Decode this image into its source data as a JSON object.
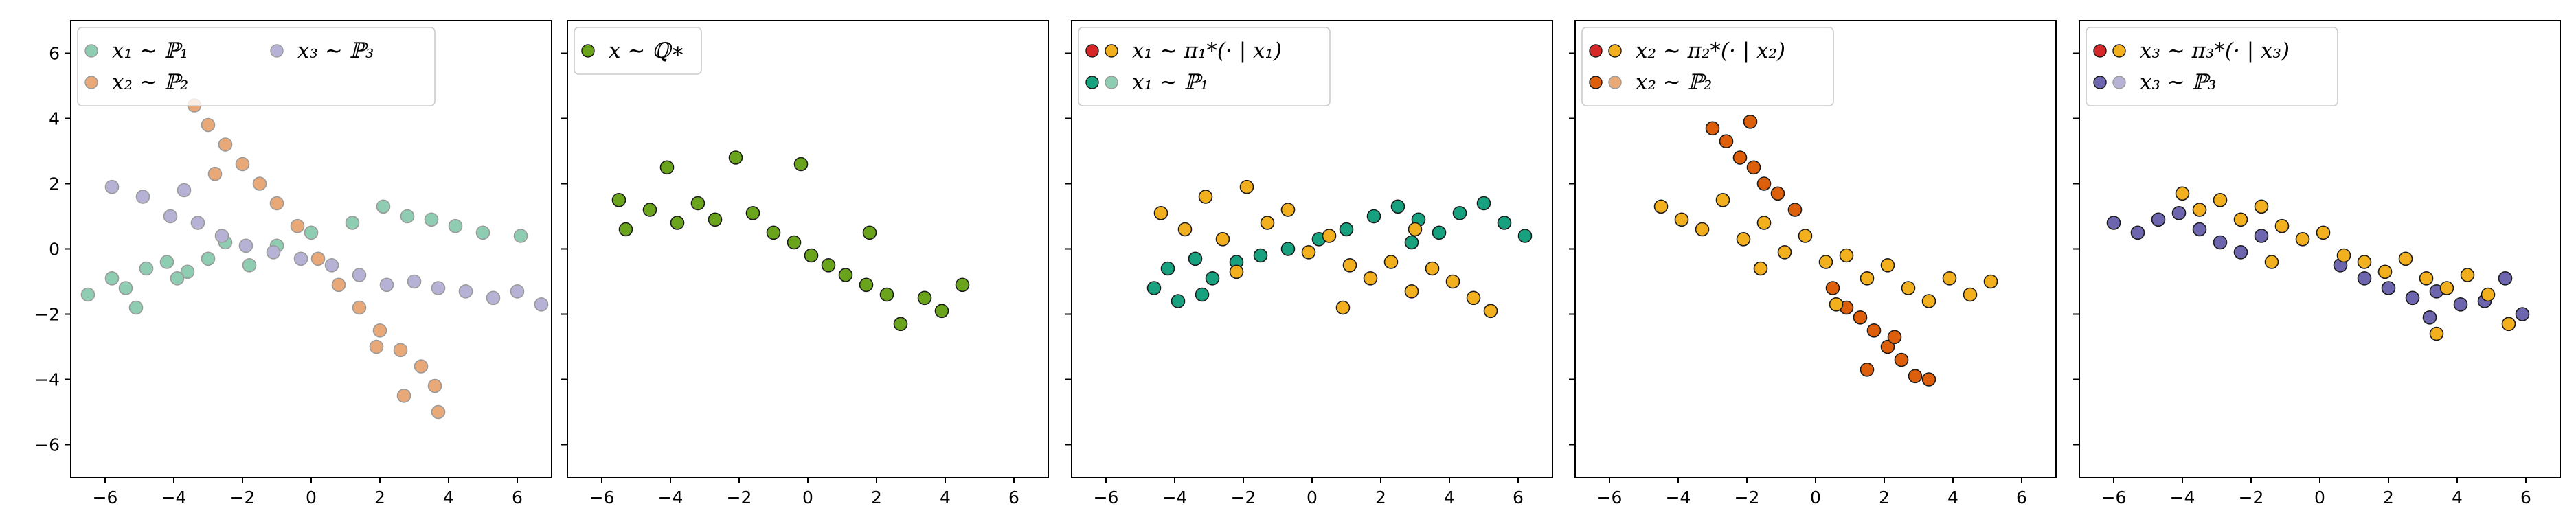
{
  "chart_data": [
    {
      "type": "scatter",
      "title": "",
      "xlabel": "",
      "ylabel": "",
      "xlim": [
        -7,
        7
      ],
      "ylim": [
        -7,
        7
      ],
      "xticks": [
        "−6",
        "−4",
        "−2",
        "0",
        "2",
        "4",
        "6"
      ],
      "yticks": [
        "6",
        "4",
        "2",
        "0",
        "−2",
        "−4",
        "−6"
      ],
      "show_yticklabels": true,
      "grid": false,
      "legend_position": "top-left",
      "legend_columns": 2,
      "legend": [
        {
          "label": "x₁ ∼ ℙ₁",
          "colors": [
            "#8fcdb3"
          ]
        },
        {
          "label": "x₂ ∼ ℙ₂",
          "colors": [
            "#e8a878"
          ]
        },
        {
          "label": "x₃ ∼ ℙ₃",
          "colors": [
            "#b6b2d6"
          ]
        }
      ],
      "series": [
        {
          "legend_label": "x₁ ∼ ℙ₁",
          "color": "#8fcdb3",
          "edge": "#9a9a9a",
          "points": [
            [
              -6.5,
              -1.4
            ],
            [
              -5.8,
              -0.9
            ],
            [
              -5.4,
              -1.2
            ],
            [
              -4.8,
              -0.6
            ],
            [
              -4.2,
              -0.4
            ],
            [
              -3.6,
              -0.7
            ],
            [
              -3.0,
              -0.3
            ],
            [
              -2.5,
              0.2
            ],
            [
              -1.8,
              -0.5
            ],
            [
              -1.0,
              0.1
            ],
            [
              0.0,
              0.5
            ],
            [
              1.2,
              0.8
            ],
            [
              2.1,
              1.3
            ],
            [
              2.8,
              1.0
            ],
            [
              3.5,
              0.9
            ],
            [
              4.2,
              0.7
            ],
            [
              5.0,
              0.5
            ],
            [
              6.1,
              0.4
            ],
            [
              -5.1,
              -1.8
            ],
            [
              -3.9,
              -0.9
            ]
          ]
        },
        {
          "legend_label": "x₂ ∼ ℙ₂",
          "color": "#e8a878",
          "edge": "#9a9a9a",
          "points": [
            [
              -3.4,
              4.4
            ],
            [
              -3.0,
              3.8
            ],
            [
              -2.5,
              3.2
            ],
            [
              -2.0,
              2.6
            ],
            [
              -1.5,
              2.0
            ],
            [
              -1.0,
              1.4
            ],
            [
              -0.4,
              0.7
            ],
            [
              0.2,
              -0.3
            ],
            [
              0.8,
              -1.1
            ],
            [
              1.4,
              -1.8
            ],
            [
              2.0,
              -2.5
            ],
            [
              2.6,
              -3.1
            ],
            [
              3.2,
              -3.6
            ],
            [
              3.6,
              -4.2
            ],
            [
              3.7,
              -5.0
            ],
            [
              2.7,
              -4.5
            ],
            [
              -2.8,
              2.3
            ],
            [
              1.9,
              -3.0
            ]
          ]
        },
        {
          "legend_label": "x₃ ∼ ℙ₃",
          "color": "#b6b2d6",
          "edge": "#9a9a9a",
          "points": [
            [
              -5.8,
              1.9
            ],
            [
              -4.9,
              1.6
            ],
            [
              -4.1,
              1.0
            ],
            [
              -3.3,
              0.8
            ],
            [
              -2.6,
              0.4
            ],
            [
              -1.9,
              0.1
            ],
            [
              -1.1,
              -0.1
            ],
            [
              -0.3,
              -0.3
            ],
            [
              0.6,
              -0.5
            ],
            [
              1.4,
              -0.8
            ],
            [
              2.2,
              -1.1
            ],
            [
              3.0,
              -1.0
            ],
            [
              3.7,
              -1.2
            ],
            [
              4.5,
              -1.3
            ],
            [
              5.3,
              -1.5
            ],
            [
              6.0,
              -1.3
            ],
            [
              6.7,
              -1.7
            ],
            [
              -3.7,
              1.8
            ]
          ]
        }
      ]
    },
    {
      "type": "scatter",
      "title": "",
      "xlabel": "",
      "ylabel": "",
      "xlim": [
        -7,
        7
      ],
      "ylim": [
        -7,
        7
      ],
      "xticks": [
        "−6",
        "−4",
        "−2",
        "0",
        "2",
        "4",
        "6"
      ],
      "show_yticklabels": false,
      "grid": false,
      "legend_position": "top-left",
      "legend_columns": 1,
      "legend": [
        {
          "label": "x ∼ ℚ∗",
          "colors": [
            "#6aa41c"
          ]
        }
      ],
      "series": [
        {
          "legend_label": "x ∼ ℚ∗",
          "color": "#6aa41c",
          "edge": "#1a1a1a",
          "points": [
            [
              -5.5,
              1.5
            ],
            [
              -5.3,
              0.6
            ],
            [
              -4.6,
              1.2
            ],
            [
              -4.1,
              2.5
            ],
            [
              -3.8,
              0.8
            ],
            [
              -3.2,
              1.4
            ],
            [
              -2.7,
              0.9
            ],
            [
              -2.1,
              2.8
            ],
            [
              -1.6,
              1.1
            ],
            [
              -1.0,
              0.5
            ],
            [
              -0.4,
              0.2
            ],
            [
              0.1,
              -0.2
            ],
            [
              0.6,
              -0.5
            ],
            [
              1.1,
              -0.8
            ],
            [
              1.7,
              -1.1
            ],
            [
              2.3,
              -1.4
            ],
            [
              2.7,
              -2.3
            ],
            [
              3.4,
              -1.5
            ],
            [
              3.9,
              -1.9
            ],
            [
              4.5,
              -1.1
            ],
            [
              -0.2,
              2.6
            ],
            [
              1.8,
              0.5
            ]
          ]
        }
      ]
    },
    {
      "type": "scatter",
      "title": "",
      "xlabel": "",
      "ylabel": "",
      "xlim": [
        -7,
        7
      ],
      "ylim": [
        -7,
        7
      ],
      "xticks": [
        "−6",
        "−4",
        "−2",
        "0",
        "2",
        "4",
        "6"
      ],
      "show_yticklabels": false,
      "grid": false,
      "legend_position": "top-left",
      "legend_columns": 1,
      "legend": [
        {
          "label": "x₁ ∼ π₁*(· | x₁)",
          "colors": [
            "#d62728",
            "#f2b01e"
          ]
        },
        {
          "label": "x₁ ∼ ℙ₁",
          "colors": [
            "#17a17e",
            "#8fcdb3"
          ]
        }
      ],
      "series": [
        {
          "legend_label": "x₁ ∼ ℙ₁",
          "color": "#17a17e",
          "edge": "#1a1a1a",
          "points": [
            [
              -4.6,
              -1.2
            ],
            [
              -4.2,
              -0.6
            ],
            [
              -3.9,
              -1.6
            ],
            [
              -3.4,
              -0.3
            ],
            [
              -2.9,
              -0.9
            ],
            [
              -2.2,
              -0.4
            ],
            [
              -1.5,
              -0.2
            ],
            [
              -0.7,
              0.0
            ],
            [
              0.2,
              0.3
            ],
            [
              1.0,
              0.6
            ],
            [
              1.8,
              1.0
            ],
            [
              2.5,
              1.3
            ],
            [
              3.1,
              0.9
            ],
            [
              3.7,
              0.5
            ],
            [
              4.3,
              1.1
            ],
            [
              5.0,
              1.4
            ],
            [
              5.6,
              0.8
            ],
            [
              6.2,
              0.4
            ],
            [
              -3.2,
              -1.4
            ],
            [
              2.9,
              0.2
            ]
          ]
        },
        {
          "legend_label": "x₁ ∼ π₁*(· | x₁)",
          "color": "#f2b01e",
          "edge": "#1a1a1a",
          "points": [
            [
              -4.4,
              1.1
            ],
            [
              -3.7,
              0.6
            ],
            [
              -3.1,
              1.6
            ],
            [
              -2.6,
              0.3
            ],
            [
              -1.9,
              1.9
            ],
            [
              -1.3,
              0.8
            ],
            [
              -0.7,
              1.2
            ],
            [
              -0.1,
              -0.1
            ],
            [
              0.5,
              0.4
            ],
            [
              1.1,
              -0.5
            ],
            [
              1.7,
              -0.9
            ],
            [
              2.3,
              -0.4
            ],
            [
              2.9,
              -1.3
            ],
            [
              3.5,
              -0.6
            ],
            [
              4.1,
              -1.0
            ],
            [
              4.7,
              -1.5
            ],
            [
              5.2,
              -1.9
            ],
            [
              -2.2,
              -0.7
            ],
            [
              0.9,
              -1.8
            ],
            [
              3.0,
              0.6
            ]
          ]
        }
      ]
    },
    {
      "type": "scatter",
      "title": "",
      "xlabel": "",
      "ylabel": "",
      "xlim": [
        -7,
        7
      ],
      "ylim": [
        -7,
        7
      ],
      "xticks": [
        "−6",
        "−4",
        "−2",
        "0",
        "2",
        "4",
        "6"
      ],
      "show_yticklabels": false,
      "grid": false,
      "legend_position": "top-left",
      "legend_columns": 1,
      "legend": [
        {
          "label": "x₂ ∼ π₂*(· | x₂)",
          "colors": [
            "#d62728",
            "#f2b01e"
          ]
        },
        {
          "label": "x₂ ∼ ℙ₂",
          "colors": [
            "#dd5f0c",
            "#e8a878"
          ]
        }
      ],
      "series": [
        {
          "legend_label": "x₂ ∼ ℙ₂",
          "color": "#dd5f0c",
          "edge": "#1a1a1a",
          "points": [
            [
              -3.0,
              3.7
            ],
            [
              -2.6,
              3.3
            ],
            [
              -2.2,
              2.8
            ],
            [
              -1.8,
              2.5
            ],
            [
              -1.5,
              2.0
            ],
            [
              -1.1,
              1.7
            ],
            [
              -0.6,
              1.2
            ],
            [
              -1.9,
              3.9
            ],
            [
              0.5,
              -1.2
            ],
            [
              0.9,
              -1.8
            ],
            [
              1.3,
              -2.1
            ],
            [
              1.7,
              -2.5
            ],
            [
              2.1,
              -3.0
            ],
            [
              2.5,
              -3.4
            ],
            [
              2.9,
              -3.9
            ],
            [
              3.3,
              -4.0
            ],
            [
              1.5,
              -3.7
            ],
            [
              2.3,
              -2.7
            ]
          ]
        },
        {
          "legend_label": "x₂ ∼ π₂*(· | x₂)",
          "color": "#f2b01e",
          "edge": "#1a1a1a",
          "points": [
            [
              -4.5,
              1.3
            ],
            [
              -3.9,
              0.9
            ],
            [
              -3.3,
              0.6
            ],
            [
              -2.7,
              1.5
            ],
            [
              -2.1,
              0.3
            ],
            [
              -1.5,
              0.8
            ],
            [
              -0.9,
              -0.1
            ],
            [
              -0.3,
              0.4
            ],
            [
              0.3,
              -0.4
            ],
            [
              0.9,
              -0.2
            ],
            [
              1.5,
              -0.9
            ],
            [
              2.1,
              -0.5
            ],
            [
              2.7,
              -1.2
            ],
            [
              3.3,
              -1.6
            ],
            [
              3.9,
              -0.9
            ],
            [
              4.5,
              -1.4
            ],
            [
              5.1,
              -1.0
            ],
            [
              0.6,
              -1.7
            ],
            [
              -1.6,
              -0.6
            ]
          ]
        }
      ]
    },
    {
      "type": "scatter",
      "title": "",
      "xlabel": "",
      "ylabel": "",
      "xlim": [
        -7,
        7
      ],
      "ylim": [
        -7,
        7
      ],
      "xticks": [
        "−6",
        "−4",
        "−2",
        "0",
        "2",
        "4",
        "6"
      ],
      "show_yticklabels": false,
      "grid": false,
      "legend_position": "top-left",
      "legend_columns": 1,
      "legend": [
        {
          "label": "x₃ ∼ π₃*(· | x₃)",
          "colors": [
            "#d62728",
            "#f2b01e"
          ]
        },
        {
          "label": "x₃ ∼ ℙ₃",
          "colors": [
            "#6d66ae",
            "#b6b2d6"
          ]
        }
      ],
      "series": [
        {
          "legend_label": "x₃ ∼ ℙ₃",
          "color": "#6d66ae",
          "edge": "#1a1a1a",
          "points": [
            [
              -6.0,
              0.8
            ],
            [
              -5.3,
              0.5
            ],
            [
              -4.7,
              0.9
            ],
            [
              -4.1,
              1.1
            ],
            [
              -3.5,
              0.6
            ],
            [
              -2.9,
              0.2
            ],
            [
              -2.3,
              -0.1
            ],
            [
              -1.7,
              0.4
            ],
            [
              0.6,
              -0.5
            ],
            [
              1.3,
              -0.9
            ],
            [
              2.0,
              -1.2
            ],
            [
              2.7,
              -1.5
            ],
            [
              3.4,
              -1.3
            ],
            [
              4.1,
              -1.7
            ],
            [
              4.8,
              -1.6
            ],
            [
              5.4,
              -0.9
            ],
            [
              5.9,
              -2.0
            ],
            [
              3.2,
              -2.1
            ]
          ]
        },
        {
          "legend_label": "x₃ ∼ π₃*(· | x₃)",
          "color": "#f2b01e",
          "edge": "#1a1a1a",
          "points": [
            [
              -4.0,
              1.7
            ],
            [
              -3.5,
              1.2
            ],
            [
              -2.9,
              1.5
            ],
            [
              -2.3,
              0.9
            ],
            [
              -1.7,
              1.3
            ],
            [
              -1.1,
              0.7
            ],
            [
              -0.5,
              0.3
            ],
            [
              0.1,
              0.5
            ],
            [
              0.7,
              -0.2
            ],
            [
              1.3,
              -0.4
            ],
            [
              1.9,
              -0.7
            ],
            [
              2.5,
              -0.3
            ],
            [
              3.1,
              -0.9
            ],
            [
              3.7,
              -1.2
            ],
            [
              4.3,
              -0.8
            ],
            [
              4.9,
              -1.4
            ],
            [
              3.4,
              -2.6
            ],
            [
              -1.4,
              -0.4
            ],
            [
              5.5,
              -2.3
            ]
          ]
        }
      ]
    }
  ]
}
